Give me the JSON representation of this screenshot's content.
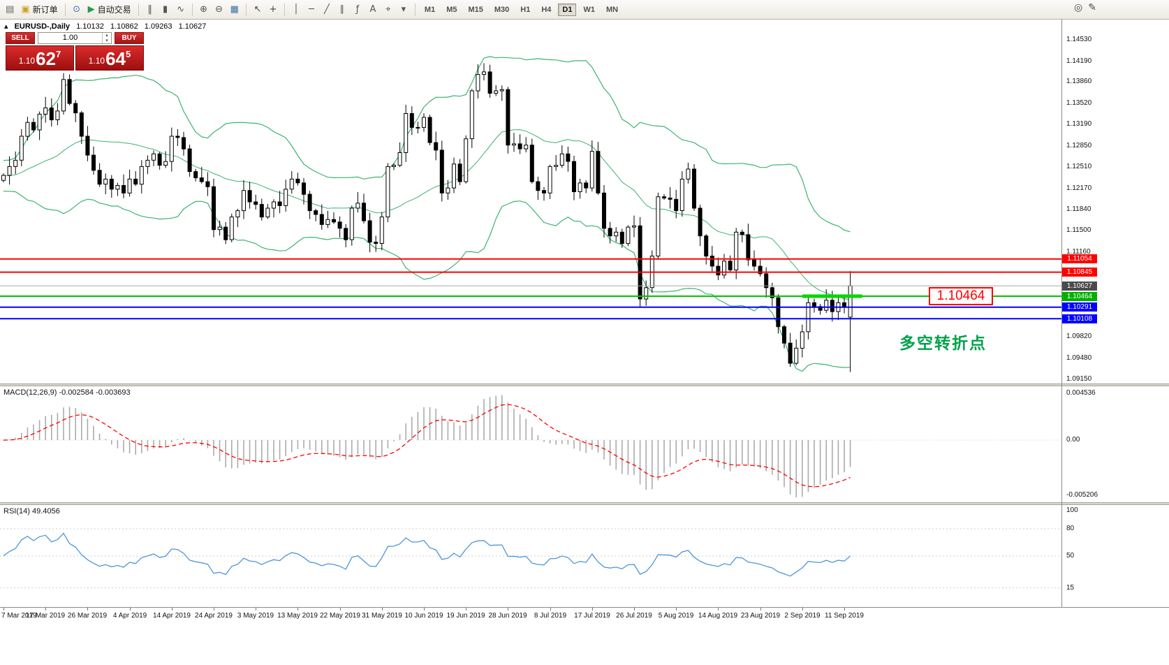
{
  "toolbar": {
    "groups": [
      {
        "items": [
          {
            "name": "new-chart-icon",
            "glyph": "▤",
            "color": "#666666"
          },
          {
            "name": "new-order-button",
            "icon_name": "new-order-icon",
            "glyph": "▣",
            "color": "#c9a227",
            "label": "新订单"
          }
        ]
      },
      {
        "items": [
          {
            "name": "compass-icon",
            "glyph": "⊙",
            "color": "#3a6ea5"
          },
          {
            "name": "auto-trading-button",
            "icon_name": "auto-trading-play-icon",
            "glyph": "▶",
            "color": "#1f9d46",
            "label": "自动交易"
          }
        ]
      },
      {
        "items": [
          {
            "name": "bar-chart-icon",
            "glyph": "‖",
            "color": "#555555"
          },
          {
            "name": "candlestick-chart-icon",
            "glyph": "▮",
            "color": "#555555"
          },
          {
            "name": "line-chart-icon",
            "glyph": "∿",
            "color": "#555555"
          }
        ]
      },
      {
        "items": [
          {
            "name": "zoom-in-icon",
            "glyph": "⊕",
            "color": "#555555"
          },
          {
            "name": "zoom-out-icon",
            "glyph": "⊖",
            "color": "#555555"
          },
          {
            "name": "tile-windows-icon",
            "glyph": "▦",
            "color": "#3a6ea5"
          }
        ]
      },
      {
        "items": [
          {
            "name": "cursor-icon",
            "glyph": "↖",
            "color": "#444444"
          },
          {
            "name": "crosshair-icon",
            "glyph": "+",
            "color": "#444444"
          }
        ]
      },
      {
        "items": [
          {
            "name": "vertical-line-icon",
            "glyph": "│",
            "color": "#555555"
          },
          {
            "name": "horizontal-line-icon",
            "glyph": "─",
            "color": "#555555"
          },
          {
            "name": "trendline-icon",
            "glyph": "╱",
            "color": "#555555"
          },
          {
            "name": "channel-icon",
            "glyph": "∥",
            "color": "#555555"
          },
          {
            "name": "fibonacci-icon",
            "glyph": "ƒ",
            "color": "#555555"
          },
          {
            "name": "text-icon",
            "glyph": "A",
            "color": "#555555"
          },
          {
            "name": "label-icon",
            "glyph": "⌖",
            "color": "#555555"
          },
          {
            "name": "shapes-dropdown-icon",
            "glyph": "▾",
            "color": "#555555"
          }
        ]
      },
      {
        "timeframes": true,
        "items": []
      }
    ],
    "timeframes": [
      "M1",
      "M5",
      "M15",
      "M30",
      "H1",
      "H4",
      "D1",
      "W1",
      "MN"
    ],
    "active_timeframe": "D1",
    "right_items": [
      {
        "name": "magnifier-icon",
        "glyph": "◎"
      },
      {
        "name": "pencil-icon",
        "glyph": "✎"
      }
    ]
  },
  "chart": {
    "header": {
      "collapse_icon": "▴",
      "symbol": "EURUSD-,Daily",
      "open": "1.10132",
      "high": "1.10862",
      "low": "1.09263",
      "close": "1.10627"
    },
    "trade_panel": {
      "sell": "SELL",
      "buy": "BUY",
      "volume": "1.00",
      "spin_up": "▴",
      "spin_down": "▾",
      "bid_main": "1.10",
      "bid_big": "62",
      "bid_sup": "7",
      "ask_main": "1.10",
      "ask_big": "64",
      "ask_sup": "5"
    },
    "annotation": "多空转折点",
    "annotation_color": "#00A24A",
    "level_flag": "1.10464",
    "flag_color": "#FF0000"
  },
  "chart_data": {
    "type": "candlestick",
    "symbol": "EURUSD",
    "timeframe": "Daily",
    "price_max": 1.1485,
    "price_min": 1.0908,
    "price_ticks": [
      "1.14530",
      "1.14190",
      "1.13860",
      "1.13520",
      "1.13190",
      "1.12850",
      "1.12510",
      "1.12170",
      "1.11840",
      "1.11500",
      "1.11160",
      "1.09820",
      "1.09480",
      "1.09150"
    ],
    "x_labels": [
      "7 Mar 2019",
      "17 Mar 2019",
      "26 Mar 2019",
      "4 Apr 2019",
      "14 Apr 2019",
      "24 Apr 2019",
      "3 May 2019",
      "13 May 2019",
      "22 May 2019",
      "31 May 2019",
      "10 Jun 2019",
      "19 Jun 2019",
      "28 Jun 2019",
      "8 Jul 2019",
      "17 Jul 2019",
      "26 Jul 2019",
      "5 Aug 2019",
      "14 Aug 2019",
      "23 Aug 2019",
      "2 Sep 2019",
      "11 Sep 2019"
    ],
    "closes": [
      1.1238,
      1.1252,
      1.1262,
      1.13,
      1.1322,
      1.131,
      1.1335,
      1.1345,
      1.1326,
      1.134,
      1.139,
      1.1352,
      1.1337,
      1.13,
      1.127,
      1.1246,
      1.1224,
      1.1232,
      1.1216,
      1.1222,
      1.121,
      1.1232,
      1.1224,
      1.1252,
      1.1262,
      1.1272,
      1.1254,
      1.126,
      1.13,
      1.1298,
      1.128,
      1.1244,
      1.1234,
      1.1228,
      1.122,
      1.1152,
      1.1156,
      1.1136,
      1.1172,
      1.1182,
      1.1214,
      1.1196,
      1.1192,
      1.1172,
      1.1186,
      1.1196,
      1.119,
      1.1216,
      1.1232,
      1.1226,
      1.1208,
      1.1182,
      1.1176,
      1.116,
      1.1168,
      1.1164,
      1.1154,
      1.1136,
      1.1186,
      1.1194,
      1.1166,
      1.1132,
      1.113,
      1.1172,
      1.1252,
      1.1254,
      1.1274,
      1.1336,
      1.1314,
      1.1314,
      1.133,
      1.129,
      1.1278,
      1.121,
      1.1218,
      1.1256,
      1.1228,
      1.1296,
      1.1372,
      1.1398,
      1.1402,
      1.1368,
      1.1372,
      1.1374,
      1.1286,
      1.1288,
      1.128,
      1.1286,
      1.1228,
      1.1214,
      1.121,
      1.1252,
      1.1254,
      1.1272,
      1.126,
      1.1212,
      1.1226,
      1.1218,
      1.1276,
      1.121,
      1.1154,
      1.1142,
      1.1148,
      1.113,
      1.1156,
      1.1158,
      1.1042,
      1.106,
      1.111,
      1.1204,
      1.1202,
      1.12,
      1.1182,
      1.1232,
      1.1248,
      1.1186,
      1.1142,
      1.111,
      1.1094,
      1.108,
      1.1102,
      1.1088,
      1.1148,
      1.1144,
      1.1104,
      1.1094,
      1.1082,
      1.106,
      1.1044,
      1.0998,
      1.0972,
      1.094,
      1.0964,
      1.099,
      1.1036,
      1.103,
      1.1024,
      1.104,
      1.1022,
      1.1036,
      1.103,
      1.10627
    ],
    "last_candle_ohlc": [
      1.10132,
      1.10862,
      1.09263,
      1.10627
    ],
    "candle_bull_color": "#FFFFFF",
    "candle_bear_color": "#000000",
    "candle_outline": "#000000",
    "bollinger": {
      "period": 20,
      "deviation": 2,
      "color": "#3CB371"
    },
    "levels": [
      {
        "label": "1.11054",
        "price": 1.11054,
        "line_color": "#FF0000",
        "badge_color": "#FF0000",
        "width": 2
      },
      {
        "label": "1.10845",
        "price": 1.10845,
        "line_color": "#FF0000",
        "badge_color": "#FF0000",
        "width": 2
      },
      {
        "label": "1.10627",
        "price": 1.10627,
        "line_color": "#A8A8A8",
        "badge_color": "#4A4A4A",
        "width": 1,
        "role": "current-price"
      },
      {
        "label": "1.10464",
        "price": 1.10464,
        "line_color": "#00C300",
        "badge_color": "#00B000",
        "width": 2
      },
      {
        "label": "1.10291",
        "price": 1.10291,
        "line_color": "#0000FF",
        "badge_color": "#0000FF",
        "width": 2
      },
      {
        "label": "1.10108",
        "price": 1.10108,
        "line_color": "#0000FF",
        "badge_color": "#0000FF",
        "width": 2
      }
    ],
    "highlight_segment": {
      "i1": 133,
      "i2": 143,
      "price": 1.10464,
      "color": "#00D800"
    },
    "macd": {
      "title": "MACD(12,26,9) -0.002584 -0.003693",
      "fast": 12,
      "slow": 26,
      "signal": 9,
      "axis": [
        "0.004536",
        "0.00",
        "-0.005206"
      ],
      "histogram_color": "#ABABAB",
      "signal_color": "#FF0000"
    },
    "rsi": {
      "title": "RSI(14) 49.4056",
      "period": 14,
      "axis": [
        "100",
        "80",
        "50",
        "15"
      ],
      "line_color": "#4D96D9"
    }
  }
}
